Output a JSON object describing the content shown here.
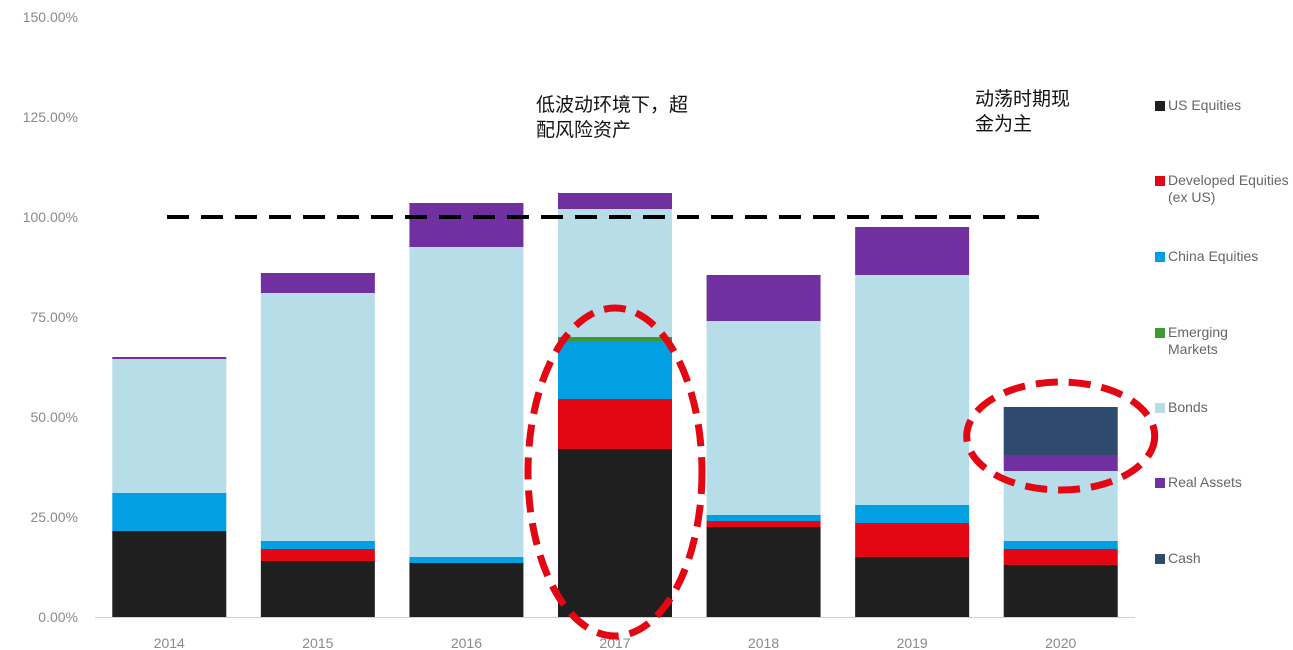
{
  "chart_data": {
    "type": "bar",
    "stacked": true,
    "categories": [
      "2014",
      "2015",
      "2016",
      "2017",
      "2018",
      "2019",
      "2020"
    ],
    "ylim": [
      0,
      150
    ],
    "yticks": [
      "0.00%",
      "25.00%",
      "50.00%",
      "75.00%",
      "100.00%",
      "125.00%",
      "150.00%"
    ],
    "reference_line": {
      "value": 100,
      "style": "dashed",
      "color": "#000000"
    },
    "series": [
      {
        "name": "US Equities",
        "color": "#1f1f1f",
        "values": [
          21.5,
          14.0,
          13.5,
          42.0,
          22.5,
          15.0,
          13.0
        ]
      },
      {
        "name": "Developed Equities (ex US)",
        "color": "#e30613",
        "values": [
          0,
          3.0,
          0,
          12.5,
          1.5,
          8.5,
          4.0
        ]
      },
      {
        "name": "China Equities",
        "color": "#00a0e3",
        "values": [
          9.5,
          2.0,
          1.5,
          14.5,
          1.5,
          4.5,
          2.0
        ]
      },
      {
        "name": "Emerging Markets",
        "color": "#3a9b35",
        "values": [
          0,
          0,
          0,
          1.0,
          0,
          0,
          0
        ]
      },
      {
        "name": "Bonds",
        "color": "#b7dde8",
        "values": [
          33.5,
          62.0,
          77.5,
          32.0,
          48.5,
          57.5,
          17.5
        ]
      },
      {
        "name": "Real Assets",
        "color": "#7030a0",
        "values": [
          0.5,
          5.0,
          11.0,
          4.0,
          11.5,
          12.0,
          4.0
        ]
      },
      {
        "name": "Cash",
        "color": "#2e4a6e",
        "values": [
          0,
          0,
          0,
          0,
          0,
          0,
          12.0
        ]
      }
    ],
    "highlight_ellipses": [
      {
        "category": "2017",
        "color": "#e30613",
        "style": "dashed"
      },
      {
        "category": "2020",
        "color": "#e30613",
        "style": "dashed"
      }
    ],
    "legend_position": "right",
    "grid": false
  },
  "annotations": {
    "left": [
      "低波动环境下，超",
      "配风险资产"
    ],
    "right": [
      "动荡时期现",
      "金为主"
    ]
  },
  "legend": [
    {
      "label": "US Equities",
      "color": "#1f1f1f"
    },
    {
      "label": "Developed Equities (ex US)",
      "color": "#e30613"
    },
    {
      "label": "China Equities",
      "color": "#00a0e3"
    },
    {
      "label": "Emerging Markets",
      "color": "#3a9b35"
    },
    {
      "label": "Bonds",
      "color": "#b7dde8"
    },
    {
      "label": "Real Assets",
      "color": "#7030a0"
    },
    {
      "label": "Cash",
      "color": "#2e4a6e"
    }
  ]
}
